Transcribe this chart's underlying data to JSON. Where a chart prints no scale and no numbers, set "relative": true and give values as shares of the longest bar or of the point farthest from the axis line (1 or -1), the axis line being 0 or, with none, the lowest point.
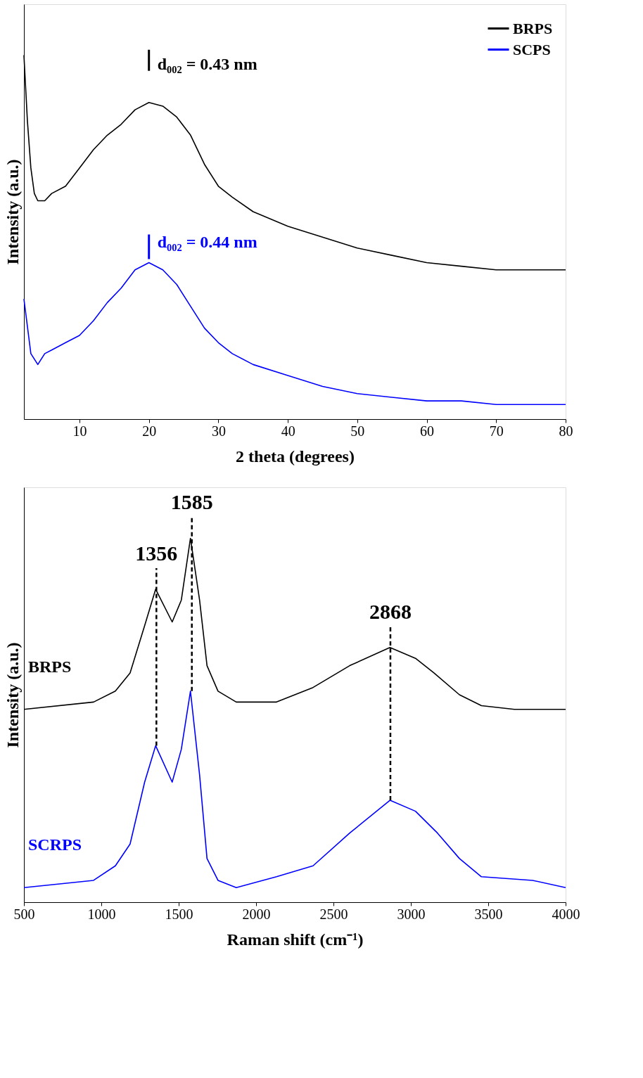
{
  "chart_data": [
    {
      "type": "line",
      "relative": true,
      "xlabel": "2 theta (degrees)",
      "ylabel": "Intensity (a.u.)",
      "xlim": [
        2,
        80
      ],
      "xticks": [
        10,
        20,
        30,
        40,
        50,
        60,
        70,
        80
      ],
      "legend": "top right",
      "grid": false,
      "series": [
        {
          "name": "BRPS",
          "color": "#000000",
          "x": [
            2,
            2.5,
            3,
            3.5,
            4,
            5,
            6,
            8,
            10,
            12,
            14,
            16,
            18,
            20,
            22,
            24,
            26,
            28,
            30,
            32,
            35,
            40,
            45,
            50,
            55,
            60,
            65,
            70,
            75,
            80
          ],
          "values": [
            1.0,
            0.82,
            0.69,
            0.62,
            0.6,
            0.6,
            0.62,
            0.64,
            0.69,
            0.74,
            0.78,
            0.81,
            0.85,
            0.87,
            0.86,
            0.83,
            0.78,
            0.7,
            0.64,
            0.61,
            0.57,
            0.53,
            0.5,
            0.47,
            0.45,
            0.43,
            0.42,
            0.41,
            0.41,
            0.41
          ]
        },
        {
          "name": "SCPS",
          "color": "#0000ff",
          "x": [
            2,
            3,
            4,
            5,
            6,
            8,
            10,
            12,
            14,
            16,
            18,
            20,
            22,
            24,
            26,
            28,
            30,
            32,
            35,
            40,
            45,
            50,
            55,
            60,
            65,
            70,
            75,
            80
          ],
          "values": [
            0.33,
            0.18,
            0.15,
            0.18,
            0.19,
            0.21,
            0.23,
            0.27,
            0.32,
            0.36,
            0.41,
            0.43,
            0.41,
            0.37,
            0.31,
            0.25,
            0.21,
            0.18,
            0.15,
            0.12,
            0.09,
            0.07,
            0.06,
            0.05,
            0.05,
            0.04,
            0.04,
            0.04
          ]
        }
      ],
      "annotations": [
        {
          "text": "d₀₀₂ = 0.43 nm",
          "x": 20,
          "y": 0.87
        },
        {
          "text": "d₀₀₂ = 0.44 nm",
          "x": 20,
          "y": 0.43
        }
      ]
    },
    {
      "type": "line",
      "relative": true,
      "xlabel": "Raman shift (cm⁻¹)",
      "ylabel": "Intensity (a.u.)",
      "xlim": [
        500,
        4000
      ],
      "xticks": [
        500,
        1000,
        1500,
        2000,
        2500,
        3000,
        3500,
        4000
      ],
      "legend": false,
      "grid": false,
      "series": [
        {
          "name": "BRPS",
          "color": "#000000",
          "x": [
            500,
            950,
            1091,
            1186,
            1280,
            1351,
            1458,
            1517,
            1576,
            1635,
            1683,
            1754,
            1872,
            2132,
            2368,
            2605,
            2865,
            3030,
            3149,
            3314,
            3456,
            3669,
            4000
          ],
          "values": [
            0.53,
            0.55,
            0.58,
            0.63,
            0.76,
            0.86,
            0.77,
            0.83,
            1.0,
            0.83,
            0.65,
            0.58,
            0.55,
            0.55,
            0.59,
            0.65,
            0.7,
            0.67,
            0.63,
            0.57,
            0.54,
            0.53,
            0.53
          ]
        },
        {
          "name": "SCRPS",
          "color": "#0000ff",
          "x": [
            500,
            950,
            1091,
            1186,
            1280,
            1351,
            1458,
            1517,
            1576,
            1635,
            1683,
            1754,
            1872,
            2132,
            2368,
            2605,
            2865,
            3030,
            3172,
            3314,
            3456,
            3787,
            4000
          ],
          "values": [
            0.04,
            0.06,
            0.1,
            0.16,
            0.33,
            0.43,
            0.33,
            0.42,
            0.58,
            0.35,
            0.12,
            0.06,
            0.04,
            0.07,
            0.1,
            0.19,
            0.28,
            0.25,
            0.19,
            0.12,
            0.07,
            0.06,
            0.04
          ]
        }
      ],
      "ref_lines": [
        {
          "axis": "x",
          "value": 1356,
          "label": "1356",
          "line_style": "dashed",
          "color": "#000000"
        },
        {
          "axis": "x",
          "value": 1585,
          "label": "1585",
          "line_style": "dashed",
          "color": "#000000"
        },
        {
          "axis": "x",
          "value": 2868,
          "label": "2868",
          "line_style": "dashed",
          "color": "#000000"
        }
      ]
    }
  ]
}
